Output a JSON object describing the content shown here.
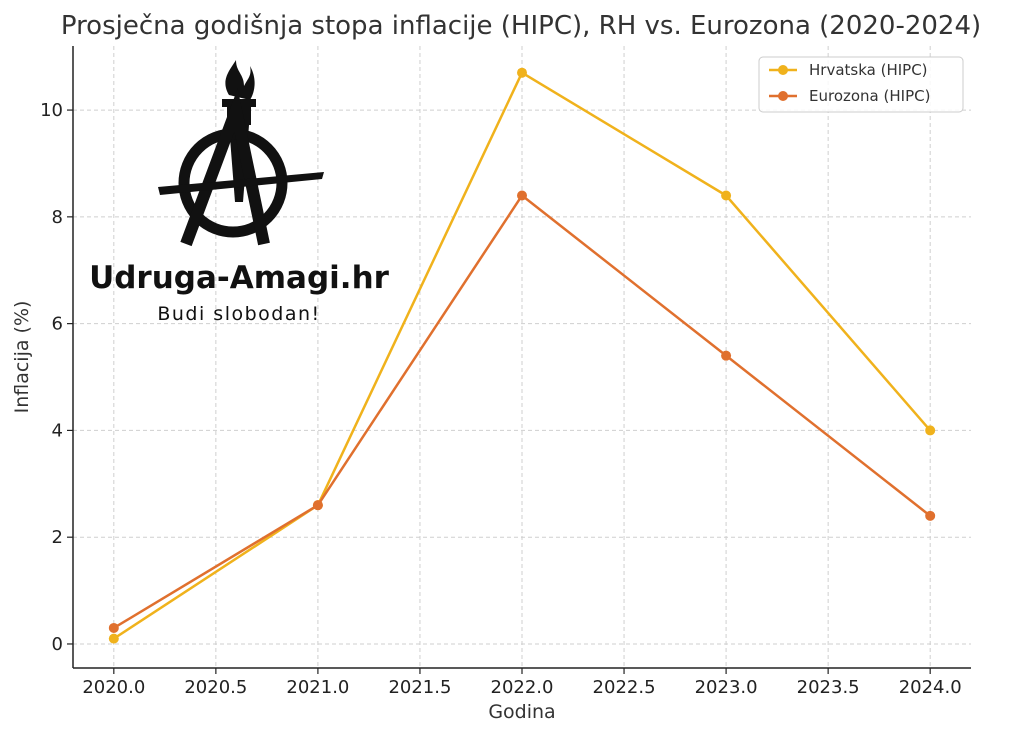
{
  "chart_data": {
    "type": "line",
    "title": "Prosječna godišnja stopa inflacije (HIPC), RH vs. Eurozona (2020-2024)",
    "xlabel": "Godina",
    "ylabel": "Inflacija (%)",
    "x": [
      2020,
      2021,
      2022,
      2023,
      2024
    ],
    "xlim": [
      2019.8,
      2024.2
    ],
    "ylim": [
      -0.45,
      11.2
    ],
    "xticks": [
      2020.0,
      2020.5,
      2021.0,
      2021.5,
      2022.0,
      2022.5,
      2023.0,
      2023.5,
      2024.0
    ],
    "xtick_labels": [
      "2020.0",
      "2020.5",
      "2021.0",
      "2021.5",
      "2022.0",
      "2022.5",
      "2023.0",
      "2023.5",
      "2024.0"
    ],
    "yticks": [
      0,
      2,
      4,
      6,
      8,
      10
    ],
    "ytick_labels": [
      "0",
      "2",
      "4",
      "6",
      "8",
      "10"
    ],
    "grid": true,
    "legend_position": "top-right",
    "series": [
      {
        "name": "Hrvatska (HIPC)",
        "values": [
          0.1,
          2.6,
          10.7,
          8.4,
          4.0
        ],
        "color": "#f0b21c"
      },
      {
        "name": "Eurozona (HIPC)",
        "values": [
          0.3,
          2.6,
          8.4,
          5.4,
          2.4
        ],
        "color": "#e0702e"
      }
    ]
  },
  "watermark": {
    "icon": "torch-anarchy-logo-icon",
    "site": "Udruga-Amagi.hr",
    "slogan": "Budi slobodan!"
  }
}
